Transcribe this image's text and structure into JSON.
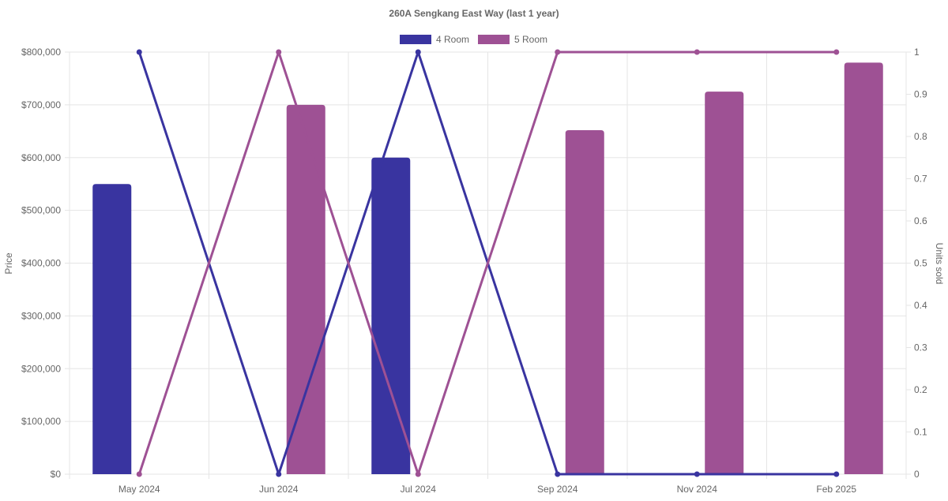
{
  "chart_data": {
    "type": "bar",
    "title": "260A Sengkang East Way (last 1 year)",
    "categories": [
      "May 2024",
      "Jun 2024",
      "Jul 2024",
      "Sep 2024",
      "Nov 2024",
      "Feb 2025"
    ],
    "left_axis": {
      "label": "Price",
      "range": [
        0,
        800000
      ],
      "ticks": [
        "$0",
        "$100,000",
        "$200,000",
        "$300,000",
        "$400,000",
        "$500,000",
        "$600,000",
        "$700,000",
        "$800,000"
      ]
    },
    "right_axis": {
      "label": "Units sold",
      "range": [
        0,
        1
      ],
      "ticks": [
        "0",
        "0.1",
        "0.2",
        "0.3",
        "0.4",
        "0.5",
        "0.6",
        "0.7",
        "0.8",
        "0.9",
        "1"
      ]
    },
    "legend_position": "top-center",
    "grid": true,
    "series": [
      {
        "name": "4 Room",
        "color": "#3934a0",
        "price": [
          550000,
          null,
          600000,
          null,
          null,
          null
        ],
        "units_sold": [
          1,
          0,
          1,
          0,
          0,
          0
        ]
      },
      {
        "name": "5 Room",
        "color": "#9e5194",
        "price": [
          null,
          700000,
          null,
          652000,
          725000,
          780000
        ],
        "units_sold": [
          0,
          1,
          0,
          1,
          1,
          1
        ]
      }
    ]
  }
}
